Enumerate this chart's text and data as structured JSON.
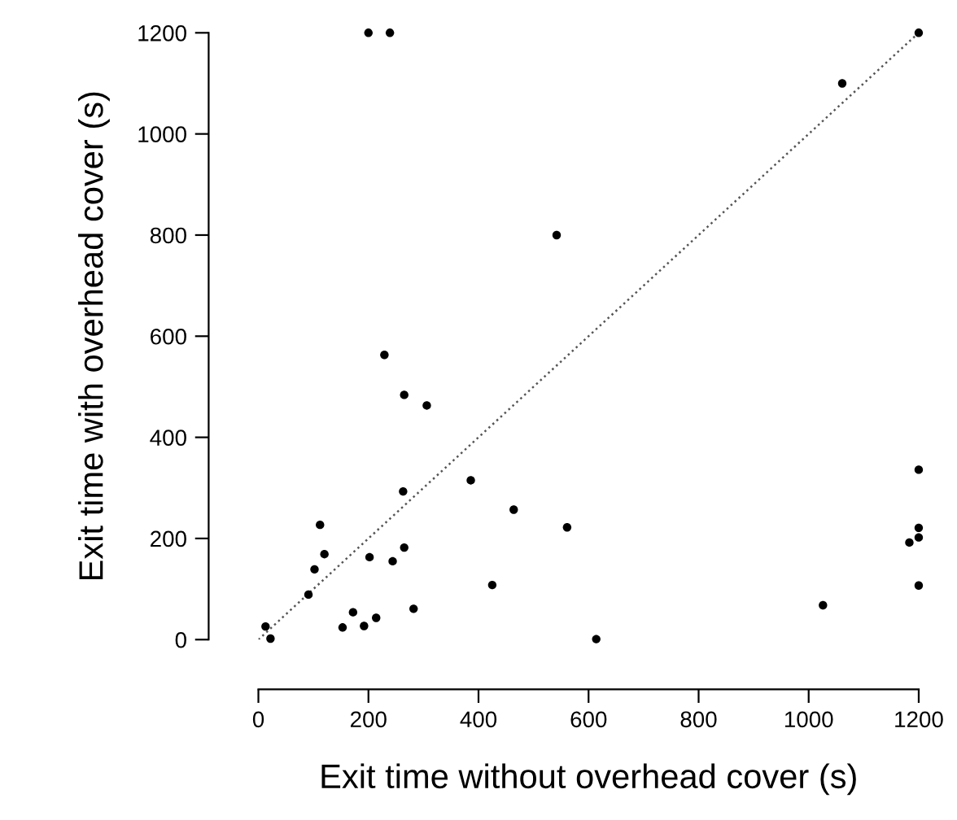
{
  "chart_data": {
    "type": "scatter",
    "xlabel": "Exit time without overhead cover (s)",
    "ylabel": "Exit time with overhead cover (s)",
    "xlim": [
      0,
      1200
    ],
    "ylim": [
      0,
      1200
    ],
    "xticks": [
      0,
      200,
      400,
      600,
      800,
      1000,
      1200
    ],
    "yticks": [
      0,
      200,
      400,
      600,
      800,
      1000,
      1200
    ],
    "grid": false,
    "legend": false,
    "series": [
      {
        "marker": "circle",
        "color": "#000000",
        "x": [
          200,
          239,
          542,
          229,
          265,
          306,
          386,
          263,
          464,
          112,
          561,
          120,
          265,
          202,
          244,
          102,
          91,
          425,
          282,
          172,
          214,
          153,
          192,
          13,
          22,
          1200,
          1061,
          1200,
          1200,
          1200,
          1183,
          1200,
          1026,
          614
        ],
        "values": [
          1200,
          1200,
          800,
          563,
          484,
          463,
          315,
          293,
          257,
          227,
          222,
          169,
          182,
          163,
          155,
          139,
          89,
          108,
          61,
          54,
          43,
          24,
          27,
          26,
          2,
          1200,
          1100,
          336,
          221,
          202,
          192,
          107,
          68,
          1
        ]
      },
      {
        "type": "line",
        "color": "#555555",
        "line_style": "dotted",
        "x": [
          0,
          1200
        ],
        "values": [
          0,
          1200
        ]
      }
    ]
  }
}
